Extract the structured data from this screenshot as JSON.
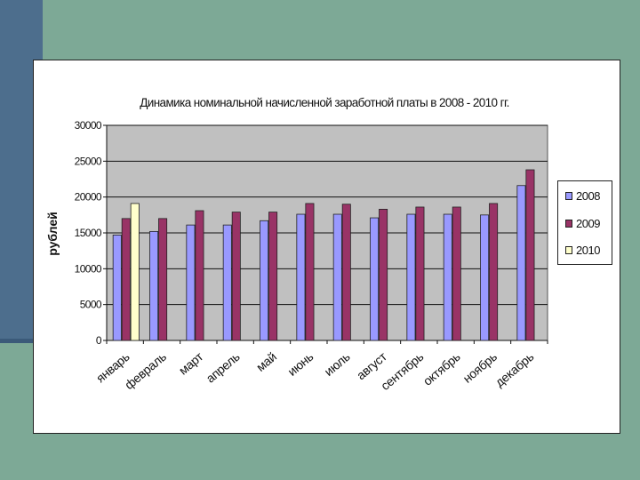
{
  "chart_data": {
    "type": "bar",
    "title": "Динамика номинальной начисленной заработной платы в 2008 - 2010 гг.",
    "ylabel": "рублей",
    "xlabel": "",
    "ylim": [
      0,
      30000
    ],
    "yticks": [
      0,
      5000,
      10000,
      15000,
      20000,
      25000,
      30000
    ],
    "grid": true,
    "legend_position": "right",
    "categories": [
      "январь",
      "февраль",
      "март",
      "апрель",
      "май",
      "июнь",
      "июль",
      "август",
      "сентябрь",
      "октябрь",
      "ноябрь",
      "декабрь"
    ],
    "series": [
      {
        "name": "2008",
        "color": "#9999ff",
        "values": [
          14700,
          15200,
          16100,
          16100,
          16700,
          17600,
          17600,
          17100,
          17600,
          17600,
          17500,
          21600
        ]
      },
      {
        "name": "2009",
        "color": "#993366",
        "values": [
          17000,
          17000,
          18100,
          17900,
          17900,
          19100,
          19000,
          18300,
          18600,
          18600,
          19100,
          23800
        ]
      },
      {
        "name": "2010",
        "color": "#ffffcc",
        "values": [
          19100,
          null,
          null,
          null,
          null,
          null,
          null,
          null,
          null,
          null,
          null,
          null
        ]
      }
    ],
    "plot_background": "#c0c0c0"
  }
}
